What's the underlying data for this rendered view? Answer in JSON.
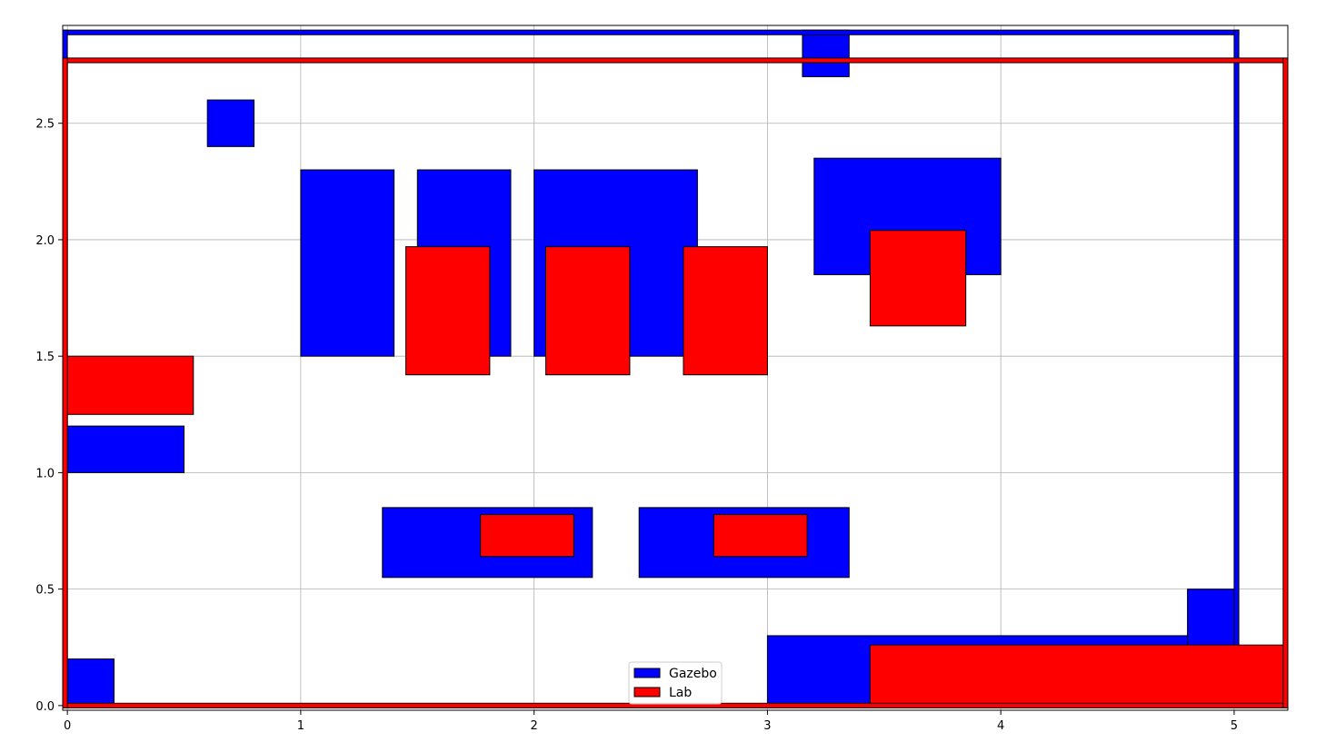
{
  "chart_data": {
    "type": "rectangles",
    "title": "",
    "xlabel": "",
    "ylabel": "",
    "xlim": [
      -0.02,
      5.23
    ],
    "ylim": [
      -0.02,
      2.92
    ],
    "grid": true,
    "x_ticks": [
      0,
      1,
      2,
      3,
      4,
      5
    ],
    "y_ticks": [
      0.0,
      0.5,
      1.0,
      1.5,
      2.0,
      2.5
    ],
    "x_tick_labels": [
      "0",
      "1",
      "2",
      "3",
      "4",
      "5"
    ],
    "y_tick_labels": [
      "0.0",
      "0.5",
      "1.0",
      "1.5",
      "2.0",
      "2.5"
    ],
    "legend_position": "bottom-center",
    "series": [
      {
        "name": "Gazebo",
        "color": "#0000ff",
        "rects": [
          {
            "x": 0.0,
            "y": 0.0,
            "w": 0.2,
            "h": 0.2
          },
          {
            "x": 0.0,
            "y": 1.0,
            "w": 0.5,
            "h": 0.2
          },
          {
            "x": 0.6,
            "y": 2.4,
            "w": 0.2,
            "h": 0.2
          },
          {
            "x": 1.0,
            "y": 1.5,
            "w": 0.4,
            "h": 0.8
          },
          {
            "x": 1.5,
            "y": 1.5,
            "w": 0.4,
            "h": 0.8
          },
          {
            "x": 2.0,
            "y": 1.5,
            "w": 0.7,
            "h": 0.8
          },
          {
            "x": 3.2,
            "y": 1.85,
            "w": 0.8,
            "h": 0.5
          },
          {
            "x": 3.15,
            "y": 2.7,
            "w": 0.2,
            "h": 0.2
          },
          {
            "x": 1.35,
            "y": 0.55,
            "w": 0.9,
            "h": 0.3
          },
          {
            "x": 2.45,
            "y": 0.55,
            "w": 0.9,
            "h": 0.3
          },
          {
            "x": 3.0,
            "y": 0.0,
            "w": 2.0,
            "h": 0.3
          },
          {
            "x": 4.8,
            "y": 0.0,
            "w": 0.2,
            "h": 0.5
          },
          {
            "x": -0.02,
            "y": 2.88,
            "w": 5.04,
            "h": 0.02
          },
          {
            "x": -0.02,
            "y": 0.0,
            "w": 0.02,
            "h": 2.9
          },
          {
            "x": 5.0,
            "y": 0.0,
            "w": 0.02,
            "h": 2.9
          }
        ]
      },
      {
        "name": "Lab",
        "color": "#ff0000",
        "rects": [
          {
            "x": -0.02,
            "y": 1.25,
            "w": 0.56,
            "h": 0.25
          },
          {
            "x": 1.45,
            "y": 1.42,
            "w": 0.36,
            "h": 0.55
          },
          {
            "x": 2.05,
            "y": 1.42,
            "w": 0.36,
            "h": 0.55
          },
          {
            "x": 2.64,
            "y": 1.42,
            "w": 0.36,
            "h": 0.55
          },
          {
            "x": 3.44,
            "y": 1.63,
            "w": 0.41,
            "h": 0.41
          },
          {
            "x": 1.77,
            "y": 0.64,
            "w": 0.4,
            "h": 0.18
          },
          {
            "x": 2.77,
            "y": 0.64,
            "w": 0.4,
            "h": 0.18
          },
          {
            "x": 3.44,
            "y": 0.0,
            "w": 1.77,
            "h": 0.26
          },
          {
            "x": -0.02,
            "y": 2.76,
            "w": 5.23,
            "h": 0.02
          },
          {
            "x": -0.02,
            "y": -0.01,
            "w": 5.23,
            "h": 0.02
          },
          {
            "x": -0.02,
            "y": -0.01,
            "w": 0.02,
            "h": 2.79
          },
          {
            "x": 5.21,
            "y": -0.01,
            "w": 0.02,
            "h": 2.79
          }
        ]
      }
    ]
  }
}
